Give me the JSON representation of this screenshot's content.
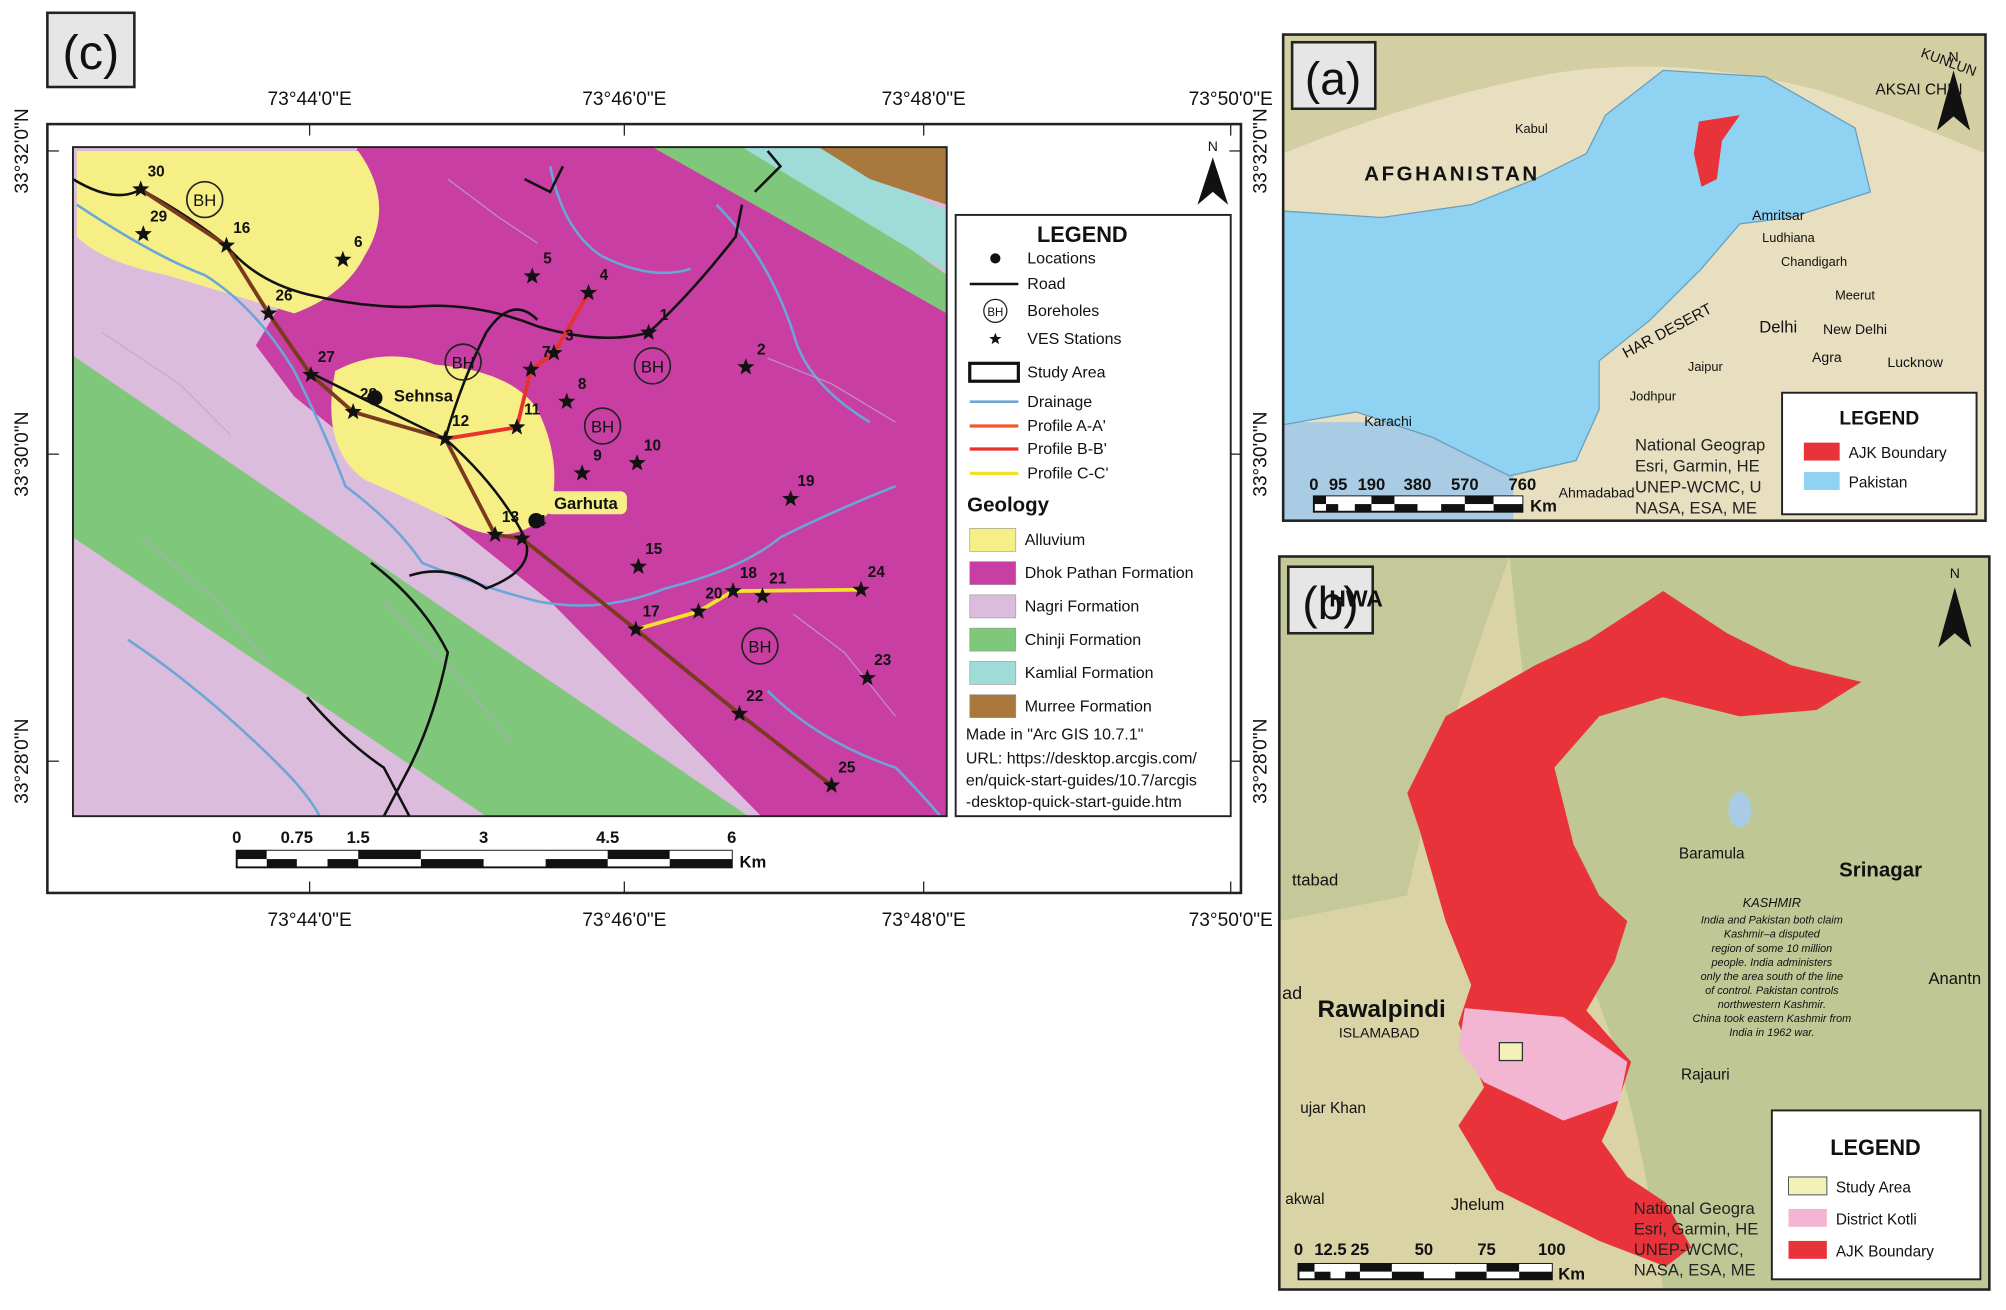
{
  "panel_c": {
    "label": "(c)",
    "north": "N",
    "lon_labels": [
      "73°44'0\"E",
      "73°46'0\"E",
      "73°48'0\"E",
      "73°50'0\"E"
    ],
    "lat_labels": [
      "33°32'0\"N",
      "33°30'0\"N",
      "33°28'0\"N"
    ],
    "stations": [
      "1",
      "2",
      "3",
      "4",
      "5",
      "6",
      "7",
      "8",
      "9",
      "10",
      "11",
      "12",
      "13",
      "14",
      "15",
      "16",
      "17",
      "18",
      "19",
      "20",
      "21",
      "22",
      "23",
      "24",
      "25",
      "26",
      "27",
      "28",
      "29",
      "30"
    ],
    "boreholes": [
      "BH",
      "BH",
      "BH",
      "BH",
      "BH"
    ],
    "places": [
      "Sehnsa",
      "Garhuta"
    ],
    "legend": {
      "title": "LEGEND",
      "items": [
        "Locations",
        "Road",
        "Boreholes",
        "VES Stations",
        "Study Area",
        "Drainage",
        "Profile A-A'",
        "Profile B-B'",
        "Profile C-C'"
      ],
      "geology_title": "Geology",
      "geology": [
        "Alluvium",
        "Dhok Pathan Formation",
        "Nagri Formation",
        "Chinji Formation",
        "Kamlial Formation",
        "Murree Formation"
      ],
      "credit": "Made in \"Arc GIS 10.7.1\"",
      "url": [
        "URL: https://desktop.arcgis.com/",
        "en/quick-start-guides/10.7/arcgis",
        "-desktop-quick-start-guide.htm"
      ]
    },
    "scale": {
      "ticks": [
        "0",
        "0.75",
        "1.5",
        "3",
        "4.5",
        "6"
      ],
      "unit": "Km"
    }
  },
  "panel_a": {
    "label": "(a)",
    "north": "N",
    "places": [
      "AFGHANISTAN",
      "Kabul",
      "Amritsar",
      "Ludhiana",
      "Chandigarh",
      "Meerut",
      "Delhi",
      "New Delhi",
      "Jaipur",
      "Agra",
      "Lucknow",
      "Jodhpur",
      "Karachi",
      "Ahmadabad",
      "HAR DESERT",
      "AKSAI CHIN",
      "KUNLUN"
    ],
    "attribution": [
      "National Geograp",
      "Esri, Garmin, HE",
      "UNEP-WCMC, U",
      "NASA, ESA, ME"
    ],
    "legend": {
      "title": "LEGEND",
      "items": [
        "AJK Boundary",
        "Pakistan"
      ]
    },
    "scale": {
      "ticks": [
        "0",
        "95",
        "190",
        "380",
        "570",
        "760"
      ],
      "unit": "Km"
    }
  },
  "panel_b": {
    "label": "(b)",
    "north": "N",
    "places": [
      "HWA",
      "Baramula",
      "Srinagar",
      "ttabad",
      "ad",
      "Rawalpindi",
      "ISLAMABAD",
      "Rajauri",
      "Anantn",
      "ujar Khan",
      "akwal",
      "Jhelum"
    ],
    "kashmir_title": "KASHMIR",
    "kashmir_note": [
      "India and Pakistan both claim",
      "Kashmir–a disputed",
      "region of some 10 million",
      "people. India administers",
      "only the area south of the line",
      "of control. Pakistan controls",
      "northwestern Kashmir.",
      "China took eastern Kashmir from",
      "India in 1962 war."
    ],
    "attribution": [
      "National Geogra",
      "Esri, Garmin, HE",
      "UNEP-WCMC,",
      "NASA, ESA, ME"
    ],
    "legend": {
      "title": "LEGEND",
      "items": [
        "Study Area",
        "District Kotli",
        "AJK Boundary"
      ]
    },
    "scale": {
      "ticks": [
        "0",
        "12.5",
        "25",
        "50",
        "75",
        "100"
      ],
      "unit": "Km"
    }
  }
}
